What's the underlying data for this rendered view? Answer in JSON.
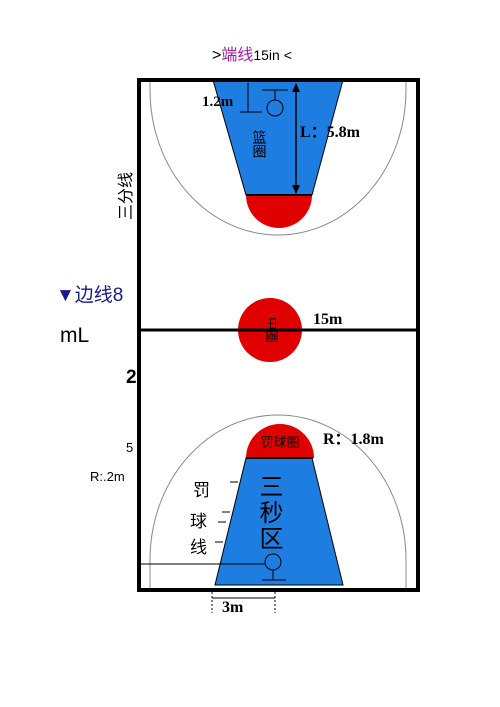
{
  "header": {
    "prefix": ">",
    "label": "端线",
    "suffix": "15in <"
  },
  "court": {
    "hoop_distance": "1.2m",
    "key_length": "L：5.8m",
    "hoop": "篮圈",
    "three_point_line": "三分线",
    "sideline": "▼边线8",
    "side_unit": "mL",
    "side_a": "2",
    "side_b": "5",
    "side_radius": "R:.2m",
    "width": "15m",
    "center_circle": "中圈",
    "free_throw_circle": "罚球圈",
    "free_throw_radius": "R：1.8m",
    "free_throw_line": [
      "罚",
      "球",
      "线"
    ],
    "three_second_area": "三秒区",
    "key_width": "3m"
  }
}
